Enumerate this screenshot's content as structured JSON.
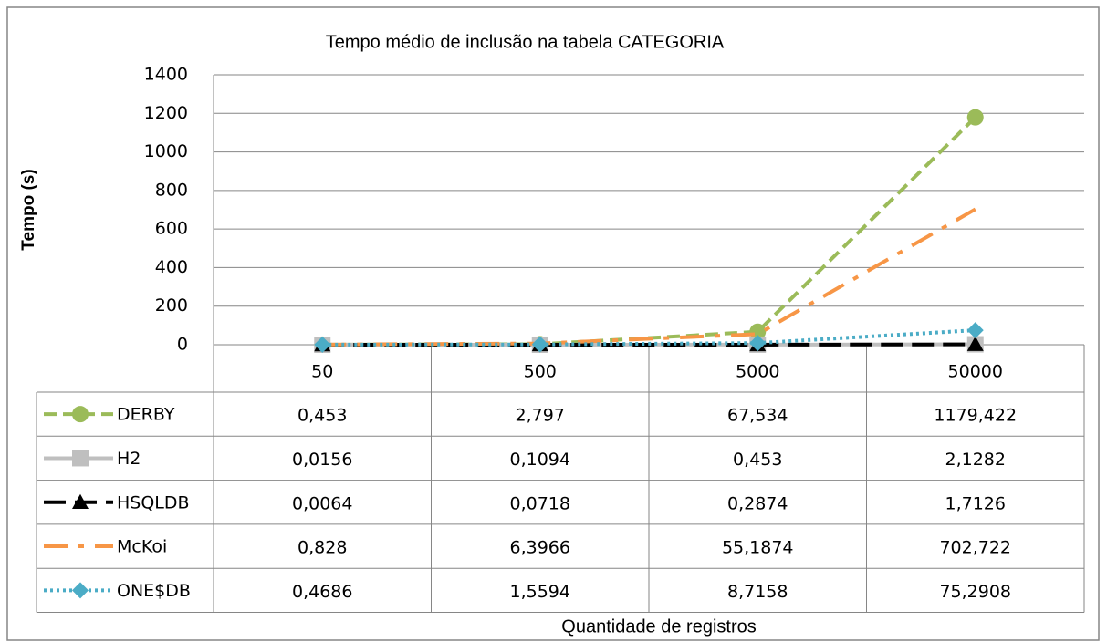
{
  "chart_data": {
    "type": "line",
    "title": "Tempo médio de inclusão na tabela CATEGORIA",
    "x_label": "Quantidade de registros",
    "y_label": "Tempo (s)",
    "categories": [
      "50",
      "500",
      "5000",
      "50000"
    ],
    "ylim": [
      0,
      1400
    ],
    "yticks": [
      0,
      200,
      400,
      600,
      800,
      1000,
      1200,
      1400
    ],
    "grid": true,
    "data_table": true,
    "series": [
      {
        "name": "DERBY",
        "color": "#9bbb59",
        "line_style": "dashed",
        "marker": "circle",
        "values": [
          0.453,
          2.797,
          67.534,
          1179.422
        ],
        "value_labels": [
          "0,453",
          "2,797",
          "67,534",
          "1179,422"
        ]
      },
      {
        "name": "H2",
        "color": "#bfbfbf",
        "line_style": "solid",
        "marker": "square",
        "values": [
          0.0156,
          0.1094,
          0.453,
          2.1282
        ],
        "value_labels": [
          "0,0156",
          "0,1094",
          "0,453",
          "2,1282"
        ]
      },
      {
        "name": "HSQLDB",
        "color": "#000000",
        "line_style": "long-dash",
        "marker": "triangle",
        "values": [
          0.0064,
          0.0718,
          0.2874,
          1.7126
        ],
        "value_labels": [
          "0,0064",
          "0,0718",
          "0,2874",
          "1,7126"
        ]
      },
      {
        "name": "McKoi",
        "color": "#f79646",
        "line_style": "dash-dot",
        "marker": "none",
        "values": [
          0.828,
          6.3966,
          55.1874,
          702.722
        ],
        "value_labels": [
          "0,828",
          "6,3966",
          "55,1874",
          "702,722"
        ]
      },
      {
        "name": "ONE$DB",
        "color": "#4bacc6",
        "line_style": "dotted",
        "marker": "diamond",
        "values": [
          0.4686,
          1.5594,
          8.7158,
          75.2908
        ],
        "value_labels": [
          "0,4686",
          "1,5594",
          "8,7158",
          "75,2908"
        ]
      }
    ]
  }
}
